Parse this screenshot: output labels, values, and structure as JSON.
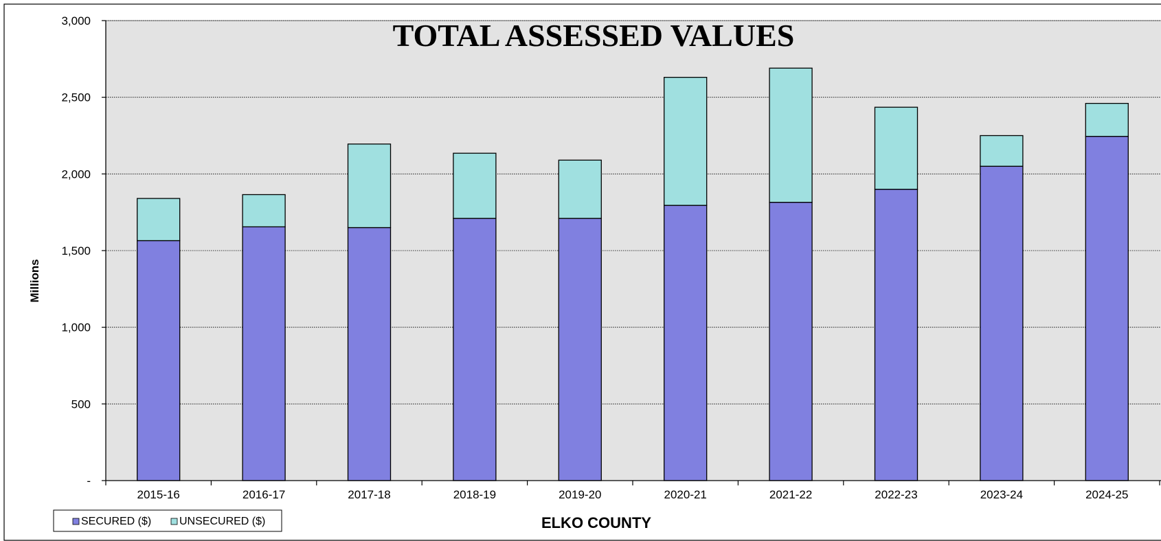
{
  "chart_data": {
    "type": "bar",
    "stacked": true,
    "title": "TOTAL ASSESSED VALUES",
    "xlabel": "ELKO COUNTY",
    "ylabel": "Millions",
    "categories": [
      "2015-16",
      "2016-17",
      "2017-18",
      "2018-19",
      "2019-20",
      "2020-21",
      "2021-22",
      "2022-23",
      "2023-24",
      "2024-25"
    ],
    "series": [
      {
        "name": "SECURED ($)",
        "color": "#8080e0",
        "values": [
          1565,
          1655,
          1650,
          1710,
          1710,
          1795,
          1815,
          1900,
          2050,
          2245
        ]
      },
      {
        "name": "UNSECURED ($)",
        "color": "#a0e0e0",
        "values": [
          275,
          210,
          545,
          425,
          380,
          835,
          875,
          535,
          200,
          215
        ]
      }
    ],
    "ylim": [
      0,
      3000
    ],
    "yticks": [
      0,
      500,
      1000,
      1500,
      2000,
      2500,
      3000
    ],
    "ytick_labels": [
      "-",
      "500",
      "1,000",
      "1,500",
      "2,000",
      "2,500",
      "3,000"
    ],
    "grid": true,
    "legend_position": "bottom-left",
    "plot_background": "#e3e3e3"
  }
}
